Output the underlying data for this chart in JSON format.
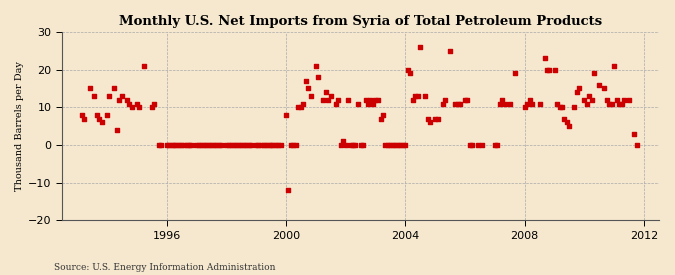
{
  "title": "Monthly U.S. Net Imports from Syria of Total Petroleum Products",
  "ylabel": "Thousand Barrels per Day",
  "source": "Source: U.S. Energy Information Administration",
  "ylim": [
    -20,
    30
  ],
  "yticks": [
    -20,
    -10,
    0,
    10,
    20,
    30
  ],
  "xlim": [
    1992.5,
    2012.5
  ],
  "xticks": [
    1996,
    2000,
    2004,
    2008,
    2012
  ],
  "bg_color": "#f5e8cf",
  "marker_color": "#cc0000",
  "marker_size": 5,
  "data_points": [
    [
      1993.17,
      8
    ],
    [
      1993.25,
      7
    ],
    [
      1993.42,
      15
    ],
    [
      1993.58,
      13
    ],
    [
      1993.67,
      8
    ],
    [
      1993.75,
      7
    ],
    [
      1993.83,
      6
    ],
    [
      1994.0,
      8
    ],
    [
      1994.08,
      13
    ],
    [
      1994.25,
      15
    ],
    [
      1994.33,
      4
    ],
    [
      1994.42,
      12
    ],
    [
      1994.5,
      13
    ],
    [
      1994.67,
      12
    ],
    [
      1994.75,
      11
    ],
    [
      1994.83,
      10
    ],
    [
      1995.0,
      11
    ],
    [
      1995.08,
      10
    ],
    [
      1995.25,
      21
    ],
    [
      1995.5,
      10
    ],
    [
      1995.58,
      11
    ],
    [
      1995.75,
      0
    ],
    [
      1995.83,
      0
    ],
    [
      1996.0,
      0
    ],
    [
      1996.08,
      0
    ],
    [
      1996.17,
      0
    ],
    [
      1996.25,
      0
    ],
    [
      1996.33,
      0
    ],
    [
      1996.42,
      0
    ],
    [
      1996.5,
      0
    ],
    [
      1996.58,
      0
    ],
    [
      1996.67,
      0
    ],
    [
      1996.75,
      0
    ],
    [
      1996.83,
      0
    ],
    [
      1997.0,
      0
    ],
    [
      1997.08,
      0
    ],
    [
      1997.17,
      0
    ],
    [
      1997.25,
      0
    ],
    [
      1997.33,
      0
    ],
    [
      1997.42,
      0
    ],
    [
      1997.5,
      0
    ],
    [
      1997.58,
      0
    ],
    [
      1997.67,
      0
    ],
    [
      1997.75,
      0
    ],
    [
      1997.83,
      0
    ],
    [
      1998.0,
      0
    ],
    [
      1998.08,
      0
    ],
    [
      1998.17,
      0
    ],
    [
      1998.25,
      0
    ],
    [
      1998.33,
      0
    ],
    [
      1998.42,
      0
    ],
    [
      1998.5,
      0
    ],
    [
      1998.58,
      0
    ],
    [
      1998.67,
      0
    ],
    [
      1998.75,
      0
    ],
    [
      1998.83,
      0
    ],
    [
      1999.0,
      0
    ],
    [
      1999.08,
      0
    ],
    [
      1999.17,
      0
    ],
    [
      1999.25,
      0
    ],
    [
      1999.33,
      0
    ],
    [
      1999.42,
      0
    ],
    [
      1999.5,
      0
    ],
    [
      1999.58,
      0
    ],
    [
      1999.67,
      0
    ],
    [
      1999.75,
      0
    ],
    [
      1999.83,
      0
    ],
    [
      2000.0,
      8
    ],
    [
      2000.08,
      -12
    ],
    [
      2000.17,
      0
    ],
    [
      2000.25,
      0
    ],
    [
      2000.33,
      0
    ],
    [
      2000.42,
      10
    ],
    [
      2000.5,
      10
    ],
    [
      2000.58,
      11
    ],
    [
      2000.67,
      17
    ],
    [
      2000.75,
      15
    ],
    [
      2000.83,
      13
    ],
    [
      2001.0,
      21
    ],
    [
      2001.08,
      18
    ],
    [
      2001.25,
      12
    ],
    [
      2001.33,
      14
    ],
    [
      2001.42,
      12
    ],
    [
      2001.5,
      13
    ],
    [
      2001.67,
      11
    ],
    [
      2001.75,
      12
    ],
    [
      2001.83,
      0
    ],
    [
      2001.92,
      1
    ],
    [
      2002.0,
      0
    ],
    [
      2002.08,
      12
    ],
    [
      2002.17,
      0
    ],
    [
      2002.25,
      0
    ],
    [
      2002.33,
      0
    ],
    [
      2002.42,
      11
    ],
    [
      2002.5,
      0
    ],
    [
      2002.58,
      0
    ],
    [
      2002.67,
      12
    ],
    [
      2002.75,
      11
    ],
    [
      2002.83,
      12
    ],
    [
      2002.92,
      11
    ],
    [
      2003.0,
      12
    ],
    [
      2003.08,
      12
    ],
    [
      2003.17,
      7
    ],
    [
      2003.25,
      8
    ],
    [
      2003.33,
      0
    ],
    [
      2003.42,
      0
    ],
    [
      2003.5,
      0
    ],
    [
      2003.58,
      0
    ],
    [
      2003.67,
      0
    ],
    [
      2003.75,
      0
    ],
    [
      2003.83,
      0
    ],
    [
      2003.92,
      0
    ],
    [
      2004.0,
      0
    ],
    [
      2004.08,
      20
    ],
    [
      2004.17,
      19
    ],
    [
      2004.25,
      12
    ],
    [
      2004.33,
      13
    ],
    [
      2004.42,
      13
    ],
    [
      2004.5,
      26
    ],
    [
      2004.67,
      13
    ],
    [
      2004.75,
      7
    ],
    [
      2004.83,
      6
    ],
    [
      2005.0,
      7
    ],
    [
      2005.08,
      7
    ],
    [
      2005.25,
      11
    ],
    [
      2005.33,
      12
    ],
    [
      2005.5,
      25
    ],
    [
      2005.67,
      11
    ],
    [
      2005.75,
      11
    ],
    [
      2005.83,
      11
    ],
    [
      2006.0,
      12
    ],
    [
      2006.08,
      12
    ],
    [
      2006.17,
      0
    ],
    [
      2006.25,
      0
    ],
    [
      2006.42,
      0
    ],
    [
      2006.58,
      0
    ],
    [
      2007.0,
      0
    ],
    [
      2007.08,
      0
    ],
    [
      2007.17,
      11
    ],
    [
      2007.25,
      12
    ],
    [
      2007.33,
      11
    ],
    [
      2007.5,
      11
    ],
    [
      2007.67,
      19
    ],
    [
      2008.0,
      10
    ],
    [
      2008.08,
      11
    ],
    [
      2008.17,
      12
    ],
    [
      2008.25,
      11
    ],
    [
      2008.5,
      11
    ],
    [
      2008.67,
      23
    ],
    [
      2008.75,
      20
    ],
    [
      2008.83,
      20
    ],
    [
      2009.0,
      20
    ],
    [
      2009.08,
      11
    ],
    [
      2009.17,
      10
    ],
    [
      2009.25,
      10
    ],
    [
      2009.33,
      7
    ],
    [
      2009.42,
      6
    ],
    [
      2009.5,
      5
    ],
    [
      2009.67,
      10
    ],
    [
      2009.75,
      14
    ],
    [
      2009.83,
      15
    ],
    [
      2010.0,
      12
    ],
    [
      2010.08,
      11
    ],
    [
      2010.17,
      13
    ],
    [
      2010.25,
      12
    ],
    [
      2010.33,
      19
    ],
    [
      2010.5,
      16
    ],
    [
      2010.67,
      15
    ],
    [
      2010.75,
      12
    ],
    [
      2010.83,
      11
    ],
    [
      2010.92,
      11
    ],
    [
      2011.0,
      21
    ],
    [
      2011.08,
      12
    ],
    [
      2011.17,
      11
    ],
    [
      2011.25,
      11
    ],
    [
      2011.33,
      12
    ],
    [
      2011.5,
      12
    ],
    [
      2011.67,
      3
    ],
    [
      2011.75,
      0
    ]
  ]
}
